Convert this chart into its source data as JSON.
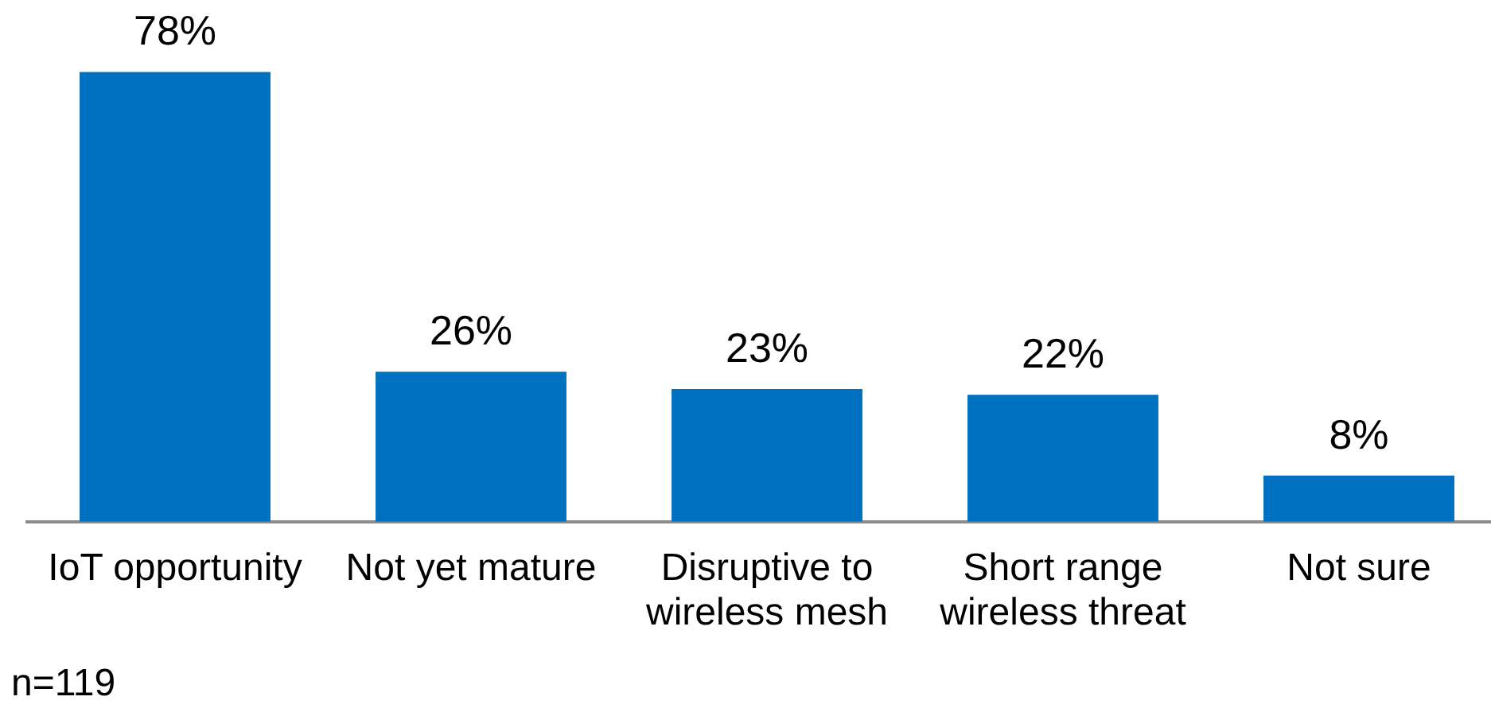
{
  "chart_data": {
    "type": "bar",
    "categories": [
      "IoT opportunity",
      "Not yet mature",
      "Disruptive to wireless mesh",
      "Short range wireless threat",
      "Not sure"
    ],
    "values": [
      78,
      26,
      23,
      22,
      8
    ],
    "value_labels": [
      "78%",
      "26%",
      "23%",
      "22%",
      "8%"
    ],
    "color": "#0070c0",
    "annotations": [
      "n=119"
    ]
  }
}
